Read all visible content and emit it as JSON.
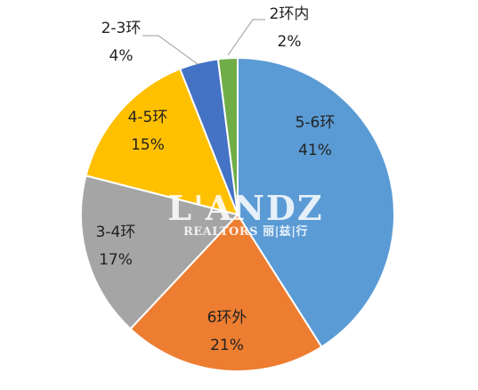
{
  "chart_data": {
    "type": "pie",
    "slices": [
      {
        "label": "5-6环",
        "value": 41,
        "value_label": "41%",
        "color": "#5B9BD5"
      },
      {
        "label": "6环外",
        "value": 21,
        "value_label": "21%",
        "color": "#ED7D31"
      },
      {
        "label": "3-4环",
        "value": 17,
        "value_label": "17%",
        "color": "#A5A5A5"
      },
      {
        "label": "4-5环",
        "value": 15,
        "value_label": "15%",
        "color": "#FFC000"
      },
      {
        "label": "2-3环",
        "value": 4,
        "value_label": "4%",
        "color": "#4472C4"
      },
      {
        "label": "2环内",
        "value": 2,
        "value_label": "2%",
        "color": "#70AD47"
      }
    ],
    "start": "12 o'clock",
    "direction": "clockwise",
    "slice_border_color": "#ffffff",
    "label_text_color": "#222222",
    "leader_line_color": "#999999"
  },
  "watermark": {
    "logo_text": "L'ANDZ",
    "sub_text": "REALTORS 丽|兹|行"
  }
}
